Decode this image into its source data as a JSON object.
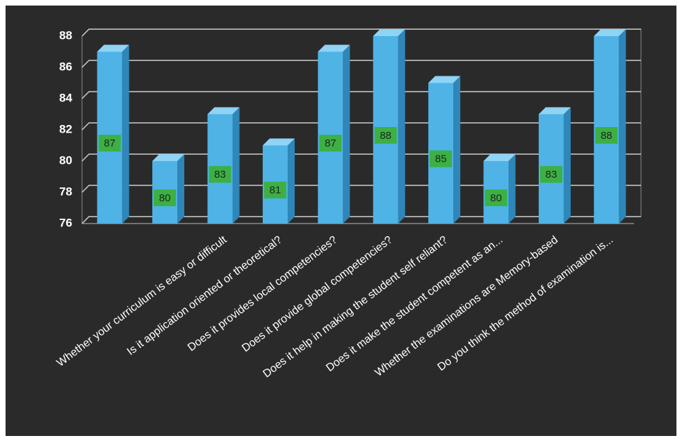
{
  "chart_data": {
    "type": "bar3d",
    "categories": [
      null,
      null,
      "Whether your curriculum is easy or difficult",
      "Is it application oriented or theoretical?",
      "Does it provides local competencies?",
      "Does it provide global competencies?",
      "Does it help in making the student self reliant?",
      "Does it make the student competent as an...",
      "Whether the examinations are Memory-based",
      "Do you think the method of examination is..."
    ],
    "values": [
      87,
      80,
      83,
      81,
      87,
      88,
      85,
      80,
      83,
      88
    ],
    "color": "#4fb3e6",
    "label_color": "#3cb043",
    "ylim": [
      76,
      88
    ],
    "yticks": [
      76,
      78,
      80,
      82,
      84,
      86,
      88
    ],
    "grid": true
  }
}
